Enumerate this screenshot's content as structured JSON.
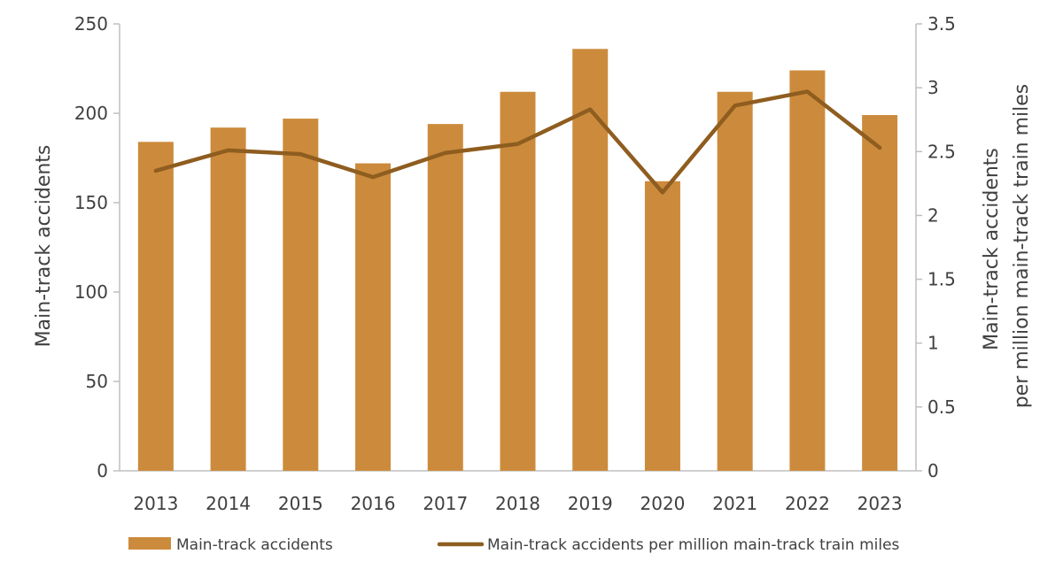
{
  "chart_data": {
    "type": "bar",
    "categories": [
      "2013",
      "2014",
      "2015",
      "2016",
      "2017",
      "2018",
      "2019",
      "2020",
      "2021",
      "2022",
      "2023"
    ],
    "series": [
      {
        "name": "Main-track accidents",
        "type": "bar",
        "axis": "left",
        "color": "#CC8B3C",
        "values": [
          184,
          192,
          197,
          172,
          194,
          212,
          236,
          162,
          212,
          224,
          199
        ]
      },
      {
        "name": "Main-track accidents per million main-track train miles",
        "type": "line",
        "axis": "right",
        "color": "#8E5D1F",
        "values": [
          2.35,
          2.51,
          2.48,
          2.3,
          2.49,
          2.56,
          2.83,
          2.18,
          2.86,
          2.97,
          2.53
        ]
      }
    ],
    "ylabel": "Main-track accidents",
    "ylabel_right": [
      "Main-track accidents",
      "per million main-track train miles"
    ],
    "ylim": [
      0,
      250
    ],
    "yticks": [
      "0",
      "50",
      "100",
      "150",
      "200",
      "250"
    ],
    "ylim_right": [
      0,
      3.5
    ],
    "yticks_right": [
      "0",
      "0.5",
      "1",
      "1.5",
      "2",
      "2.5",
      "3",
      "3.5"
    ],
    "grid": false,
    "legend_position": "bottom"
  }
}
